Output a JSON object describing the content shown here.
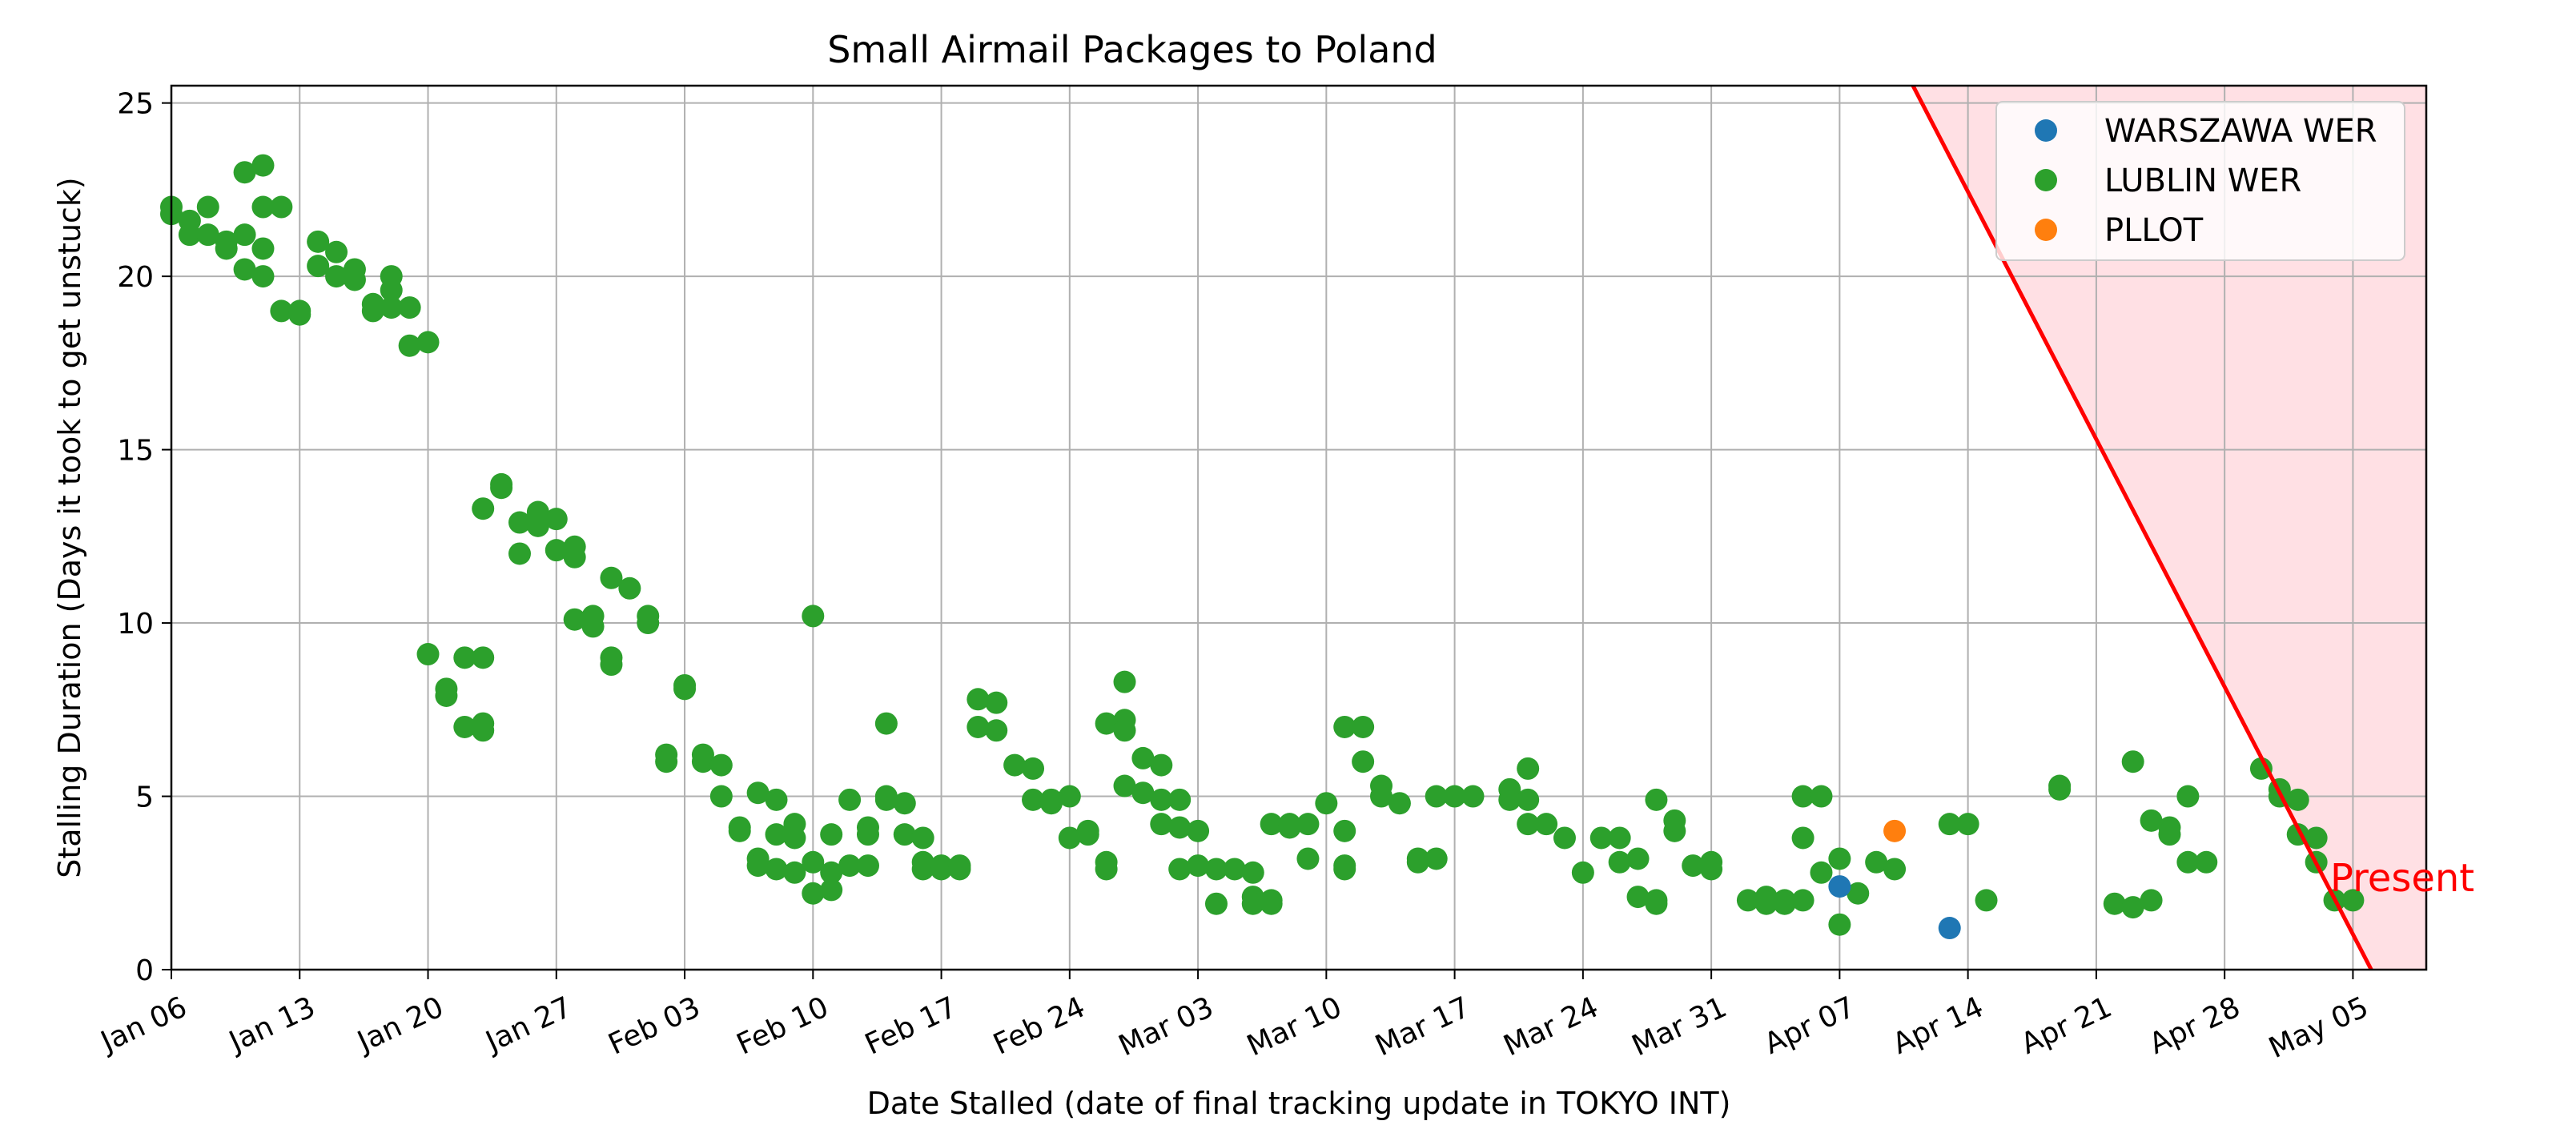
{
  "chart_data": {
    "type": "scatter",
    "title": "Small Airmail Packages to Poland",
    "xlabel": "Date Stalled (date of final tracking update in TOKYO INT)",
    "ylabel": "Stalling Duration (Days it took to get unstuck)",
    "x_ticks": [
      "Jan 06",
      "Jan 13",
      "Jan 20",
      "Jan 27",
      "Feb 03",
      "Feb 10",
      "Feb 17",
      "Feb 24",
      "Mar 03",
      "Mar 10",
      "Mar 17",
      "Mar 24",
      "Mar 31",
      "Apr 07",
      "Apr 14",
      "Apr 21",
      "Apr 28",
      "May 05"
    ],
    "x_tick_dates": [
      "2024-01-06",
      "2024-01-13",
      "2024-01-20",
      "2024-01-27",
      "2024-02-03",
      "2024-02-10",
      "2024-02-17",
      "2024-02-24",
      "2024-03-02",
      "2024-03-09",
      "2024-03-16",
      "2024-03-23",
      "2024-03-30",
      "2024-04-06",
      "2024-04-13",
      "2024-04-20",
      "2024-04-27",
      "2024-05-04"
    ],
    "y_ticks": [
      0,
      5,
      10,
      15,
      20,
      25
    ],
    "xlim": [
      "2024-01-06",
      "2024-05-08"
    ],
    "ylim": [
      0,
      25.5
    ],
    "grid": true,
    "legend": "top-right",
    "cutoff_annotation": "Present",
    "cutoff_line": {
      "from": [
        "2024-04-10",
        25.5
      ],
      "to": [
        "2024-05-05",
        0
      ]
    },
    "series": [
      {
        "name": "WARSZAWA WER",
        "color": "#1f77b4",
        "points": [
          [
            "2024-04-06",
            2.4
          ],
          [
            "2024-04-12",
            1.2
          ]
        ]
      },
      {
        "name": "LUBLIN WER",
        "color": "#2ca02c",
        "points": [
          [
            "2024-01-06",
            22
          ],
          [
            "2024-01-06",
            21.8
          ],
          [
            "2024-01-07",
            21.2
          ],
          [
            "2024-01-07",
            21.6
          ],
          [
            "2024-01-08",
            22
          ],
          [
            "2024-01-08",
            21.2
          ],
          [
            "2024-01-09",
            21
          ],
          [
            "2024-01-09",
            20.8
          ],
          [
            "2024-01-10",
            21.2
          ],
          [
            "2024-01-10",
            23
          ],
          [
            "2024-01-11",
            23.2
          ],
          [
            "2024-01-11",
            22
          ],
          [
            "2024-01-10",
            20.2
          ],
          [
            "2024-01-11",
            20.8
          ],
          [
            "2024-01-11",
            20
          ],
          [
            "2024-01-12",
            19
          ],
          [
            "2024-01-12",
            22
          ],
          [
            "2024-01-13",
            19
          ],
          [
            "2024-01-13",
            18.9
          ],
          [
            "2024-01-14",
            21
          ],
          [
            "2024-01-14",
            20.3
          ],
          [
            "2024-01-15",
            20
          ],
          [
            "2024-01-15",
            20.7
          ],
          [
            "2024-01-16",
            19.9
          ],
          [
            "2024-01-16",
            20.2
          ],
          [
            "2024-01-17",
            19.2
          ],
          [
            "2024-01-17",
            19
          ],
          [
            "2024-01-18",
            19.6
          ],
          [
            "2024-01-18",
            20
          ],
          [
            "2024-01-18",
            19.1
          ],
          [
            "2024-01-19",
            19.1
          ],
          [
            "2024-01-19",
            18
          ],
          [
            "2024-01-20",
            18.1
          ],
          [
            "2024-01-20",
            9.1
          ],
          [
            "2024-01-21",
            8.1
          ],
          [
            "2024-01-21",
            7.9
          ],
          [
            "2024-01-22",
            7
          ],
          [
            "2024-01-22",
            9
          ],
          [
            "2024-01-23",
            7.1
          ],
          [
            "2024-01-23",
            6.9
          ],
          [
            "2024-01-23",
            9
          ],
          [
            "2024-01-23",
            13.3
          ],
          [
            "2024-01-24",
            14
          ],
          [
            "2024-01-24",
            13.9
          ],
          [
            "2024-01-25",
            12.9
          ],
          [
            "2024-01-25",
            12
          ],
          [
            "2024-01-26",
            13.2
          ],
          [
            "2024-01-26",
            12.8
          ],
          [
            "2024-01-27",
            13
          ],
          [
            "2024-01-27",
            12.1
          ],
          [
            "2024-01-28",
            11.9
          ],
          [
            "2024-01-28",
            12.2
          ],
          [
            "2024-01-28",
            10.1
          ],
          [
            "2024-01-29",
            9.9
          ],
          [
            "2024-01-29",
            10.2
          ],
          [
            "2024-01-30",
            9
          ],
          [
            "2024-01-30",
            8.8
          ],
          [
            "2024-01-30",
            11.3
          ],
          [
            "2024-01-31",
            11
          ],
          [
            "2024-02-01",
            10.2
          ],
          [
            "2024-02-01",
            10
          ],
          [
            "2024-02-02",
            6.2
          ],
          [
            "2024-02-02",
            6
          ],
          [
            "2024-02-03",
            8.1
          ],
          [
            "2024-02-03",
            8.2
          ],
          [
            "2024-02-04",
            6
          ],
          [
            "2024-02-04",
            6.2
          ],
          [
            "2024-02-05",
            5.9
          ],
          [
            "2024-02-05",
            5
          ],
          [
            "2024-02-06",
            4
          ],
          [
            "2024-02-06",
            4.1
          ],
          [
            "2024-02-07",
            5.1
          ],
          [
            "2024-02-07",
            3.2
          ],
          [
            "2024-02-07",
            3
          ],
          [
            "2024-02-08",
            2.9
          ],
          [
            "2024-02-08",
            3.9
          ],
          [
            "2024-02-08",
            4.9
          ],
          [
            "2024-02-09",
            4.2
          ],
          [
            "2024-02-09",
            3.8
          ],
          [
            "2024-02-09",
            2.8
          ],
          [
            "2024-02-10",
            3.1
          ],
          [
            "2024-02-10",
            2.2
          ],
          [
            "2024-02-10",
            10.2
          ],
          [
            "2024-02-11",
            2.3
          ],
          [
            "2024-02-11",
            3.9
          ],
          [
            "2024-02-11",
            2.8
          ],
          [
            "2024-02-12",
            3
          ],
          [
            "2024-02-12",
            4.9
          ],
          [
            "2024-02-13",
            3
          ],
          [
            "2024-02-13",
            4.1
          ],
          [
            "2024-02-13",
            3.9
          ],
          [
            "2024-02-14",
            4.9
          ],
          [
            "2024-02-14",
            5
          ],
          [
            "2024-02-14",
            7.1
          ],
          [
            "2024-02-15",
            4.8
          ],
          [
            "2024-02-15",
            3.9
          ],
          [
            "2024-02-16",
            3.8
          ],
          [
            "2024-02-16",
            2.9
          ],
          [
            "2024-02-16",
            3.1
          ],
          [
            "2024-02-17",
            2.9
          ],
          [
            "2024-02-17",
            3
          ],
          [
            "2024-02-18",
            3
          ],
          [
            "2024-02-18",
            2.9
          ],
          [
            "2024-02-19",
            7.8
          ],
          [
            "2024-02-19",
            7
          ],
          [
            "2024-02-20",
            6.9
          ],
          [
            "2024-02-20",
            7.7
          ],
          [
            "2024-02-21",
            5.9
          ],
          [
            "2024-02-22",
            5.8
          ],
          [
            "2024-02-22",
            4.9
          ],
          [
            "2024-02-23",
            4.8
          ],
          [
            "2024-02-23",
            4.9
          ],
          [
            "2024-02-24",
            5
          ],
          [
            "2024-02-24",
            3.8
          ],
          [
            "2024-02-25",
            3.9
          ],
          [
            "2024-02-25",
            4
          ],
          [
            "2024-02-26",
            3.1
          ],
          [
            "2024-02-26",
            2.9
          ],
          [
            "2024-02-26",
            7.1
          ],
          [
            "2024-02-27",
            7.2
          ],
          [
            "2024-02-27",
            6.9
          ],
          [
            "2024-02-27",
            8.3
          ],
          [
            "2024-02-27",
            5.3
          ],
          [
            "2024-02-28",
            5.1
          ],
          [
            "2024-02-28",
            6.1
          ],
          [
            "2024-02-29",
            5.9
          ],
          [
            "2024-02-29",
            4.9
          ],
          [
            "2024-02-29",
            4.2
          ],
          [
            "2024-03-01",
            4.1
          ],
          [
            "2024-03-01",
            4.9
          ],
          [
            "2024-03-01",
            2.9
          ],
          [
            "2024-03-02",
            3
          ],
          [
            "2024-03-02",
            4
          ],
          [
            "2024-03-03",
            1.9
          ],
          [
            "2024-03-03",
            2.9
          ],
          [
            "2024-03-04",
            2.9
          ],
          [
            "2024-03-05",
            2.8
          ],
          [
            "2024-03-05",
            2.1
          ],
          [
            "2024-03-05",
            1.9
          ],
          [
            "2024-03-06",
            2
          ],
          [
            "2024-03-06",
            1.9
          ],
          [
            "2024-03-06",
            4.2
          ],
          [
            "2024-03-07",
            4.2
          ],
          [
            "2024-03-07",
            4.1
          ],
          [
            "2024-03-08",
            3.2
          ],
          [
            "2024-03-08",
            4.2
          ],
          [
            "2024-03-09",
            4.8
          ],
          [
            "2024-03-10",
            4
          ],
          [
            "2024-03-10",
            3
          ],
          [
            "2024-03-10",
            2.9
          ],
          [
            "2024-03-10",
            7
          ],
          [
            "2024-03-11",
            7
          ],
          [
            "2024-03-11",
            6
          ],
          [
            "2024-03-12",
            5.3
          ],
          [
            "2024-03-12",
            5
          ],
          [
            "2024-03-13",
            4.8
          ],
          [
            "2024-03-14",
            3.2
          ],
          [
            "2024-03-14",
            3.1
          ],
          [
            "2024-03-15",
            3.2
          ],
          [
            "2024-03-15",
            5
          ],
          [
            "2024-03-16",
            5
          ],
          [
            "2024-03-17",
            5
          ],
          [
            "2024-03-19",
            4.9
          ],
          [
            "2024-03-19",
            5.2
          ],
          [
            "2024-03-20",
            5.8
          ],
          [
            "2024-03-20",
            4.2
          ],
          [
            "2024-03-20",
            4.9
          ],
          [
            "2024-03-21",
            4.2
          ],
          [
            "2024-03-22",
            3.8
          ],
          [
            "2024-03-23",
            2.8
          ],
          [
            "2024-03-24",
            3.8
          ],
          [
            "2024-03-25",
            3.1
          ],
          [
            "2024-03-25",
            3.8
          ],
          [
            "2024-03-26",
            3.2
          ],
          [
            "2024-03-26",
            2.1
          ],
          [
            "2024-03-27",
            2
          ],
          [
            "2024-03-27",
            1.9
          ],
          [
            "2024-03-27",
            4.9
          ],
          [
            "2024-03-28",
            4
          ],
          [
            "2024-03-28",
            4.3
          ],
          [
            "2024-03-29",
            3
          ],
          [
            "2024-03-30",
            3.1
          ],
          [
            "2024-03-30",
            2.9
          ],
          [
            "2024-04-01",
            2
          ],
          [
            "2024-04-02",
            1.9
          ],
          [
            "2024-04-02",
            2.1
          ],
          [
            "2024-04-03",
            1.9
          ],
          [
            "2024-04-03",
            2
          ],
          [
            "2024-04-04",
            3.8
          ],
          [
            "2024-04-04",
            2
          ],
          [
            "2024-04-04",
            5
          ],
          [
            "2024-04-05",
            2.8
          ],
          [
            "2024-04-05",
            5
          ],
          [
            "2024-04-06",
            3.2
          ],
          [
            "2024-04-06",
            1.3
          ],
          [
            "2024-04-07",
            2.2
          ],
          [
            "2024-04-08",
            3.1
          ],
          [
            "2024-04-09",
            2.9
          ],
          [
            "2024-04-12",
            4.2
          ],
          [
            "2024-04-13",
            4.2
          ],
          [
            "2024-04-14",
            2
          ],
          [
            "2024-04-18",
            5.3
          ],
          [
            "2024-04-18",
            5.2
          ],
          [
            "2024-04-21",
            1.9
          ],
          [
            "2024-04-22",
            1.8
          ],
          [
            "2024-04-22",
            6
          ],
          [
            "2024-04-23",
            4.3
          ],
          [
            "2024-04-23",
            2
          ],
          [
            "2024-04-24",
            4.1
          ],
          [
            "2024-04-24",
            3.9
          ],
          [
            "2024-04-25",
            5
          ],
          [
            "2024-04-25",
            3.1
          ],
          [
            "2024-04-26",
            3.1
          ],
          [
            "2024-04-29",
            5.8
          ],
          [
            "2024-04-30",
            5
          ],
          [
            "2024-04-30",
            5.2
          ],
          [
            "2024-05-01",
            4.9
          ],
          [
            "2024-05-01",
            3.9
          ],
          [
            "2024-05-02",
            3.1
          ],
          [
            "2024-05-02",
            3.8
          ],
          [
            "2024-05-03",
            2
          ],
          [
            "2024-05-04",
            2
          ]
        ]
      },
      {
        "name": "PLLOT",
        "color": "#ff7f0e",
        "points": [
          [
            "2024-04-09",
            4
          ]
        ]
      }
    ]
  }
}
